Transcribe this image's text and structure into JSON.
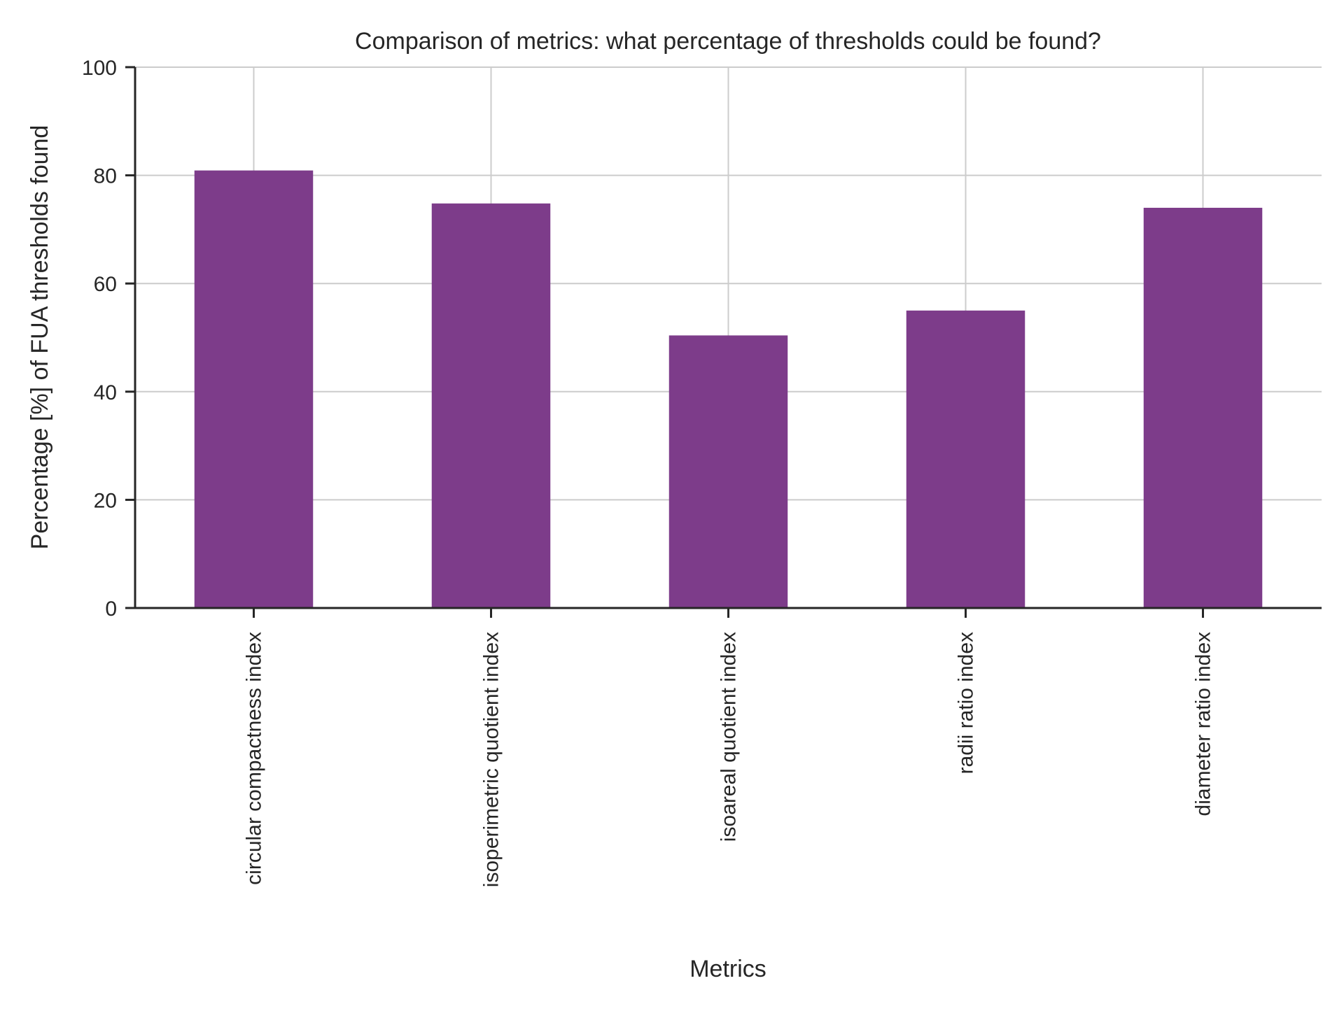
{
  "chart_data": {
    "type": "bar",
    "title": "Comparison of metrics: what percentage of thresholds could be found?",
    "xlabel": "Metrics",
    "ylabel": "Percentage [%] of FUA thresholds found",
    "categories": [
      "circular compactness index",
      "isoperimetric quotient index",
      "isoareal quotient index",
      "radii ratio index",
      "diameter ratio index"
    ],
    "values": [
      80.9,
      74.8,
      50.4,
      55.0,
      74.0
    ],
    "ylim": [
      0,
      100
    ],
    "yticks": [
      0,
      20,
      40,
      60,
      80,
      100
    ],
    "ytick_labels": [
      "0",
      "20",
      "40",
      "60",
      "80",
      "100"
    ],
    "grid": true,
    "bar_color": "#7d3c8a",
    "grid_color": "#cccccc",
    "axis_color": "#262626"
  }
}
